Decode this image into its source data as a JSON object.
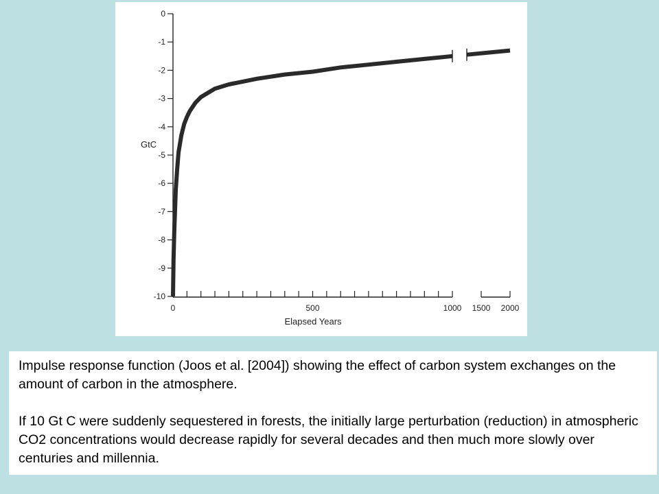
{
  "chart_data": {
    "type": "line",
    "title": "",
    "xlabel": "Elapsed Years",
    "ylabel": "GtC",
    "ylim": [
      -10,
      0
    ],
    "y_ticks": [
      0,
      -1,
      -2,
      -3,
      -4,
      -5,
      -6,
      -7,
      -8,
      -9,
      -10
    ],
    "x_scale": "linear 0-1000 followed by an axis break; 1500 and 2000 shown as compressed segment",
    "x_tick_labels": [
      {
        "value": 0,
        "label": "0"
      },
      {
        "value": 500,
        "label": "500"
      },
      {
        "value": 1000,
        "label": "1000"
      },
      {
        "value": 1500,
        "label": "1500"
      },
      {
        "value": 2000,
        "label": "2000"
      }
    ],
    "x_minor_ticks": [
      50,
      100,
      150,
      200,
      250,
      300,
      350,
      400,
      450,
      500,
      550,
      600,
      650,
      700,
      750,
      800,
      850,
      900,
      950,
      1000
    ],
    "grid": false,
    "series": [
      {
        "x": [
          0,
          2,
          5,
          10,
          15,
          20,
          30,
          40,
          50,
          60,
          80,
          100,
          150,
          200,
          250,
          300,
          400,
          500,
          600,
          700,
          800,
          900,
          1000
        ],
        "y": [
          -10.0,
          -8.7,
          -7.6,
          -6.2,
          -5.5,
          -4.9,
          -4.3,
          -3.9,
          -3.65,
          -3.45,
          -3.15,
          -2.95,
          -2.65,
          -2.5,
          -2.4,
          -2.3,
          -2.15,
          -2.05,
          -1.9,
          -1.8,
          -1.7,
          -1.6,
          -1.5
        ]
      },
      {
        "x": [
          1250,
          2000
        ],
        "y": [
          -1.45,
          -1.3
        ]
      }
    ]
  },
  "caption": {
    "paragraph1": "Impulse response function (Joos et al. [2004]) showing the effect of carbon system exchanges on the amount of carbon in the atmosphere.",
    "paragraph2": "If 10 Gt C were suddenly sequestered in forests, the initially large perturbation (reduction) in atmospheric CO2 concentrations would decrease rapidly for several decades and then much more slowly over centuries and millennia."
  }
}
